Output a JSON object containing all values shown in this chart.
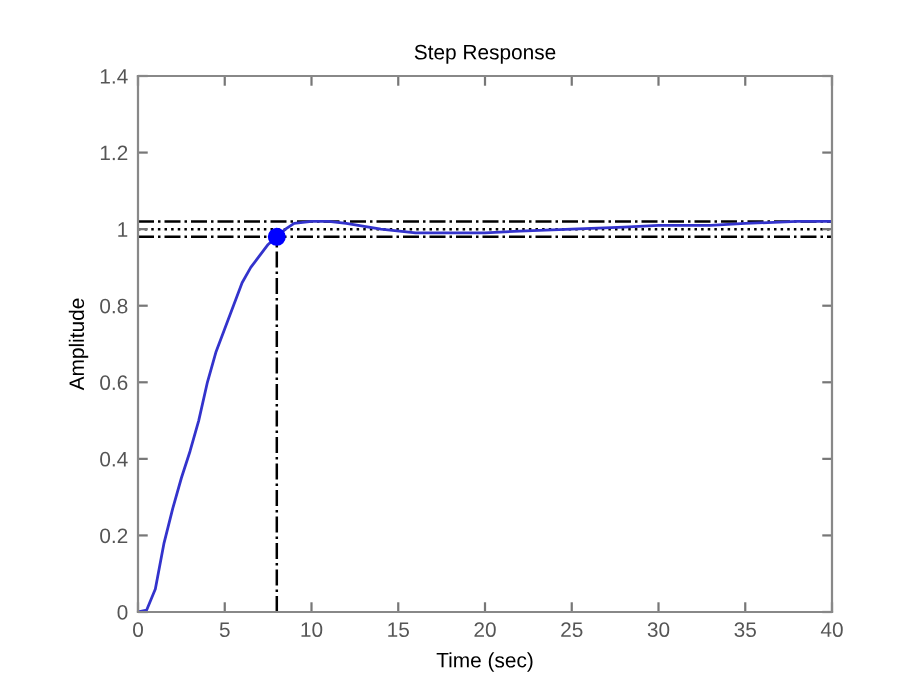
{
  "chart_data": {
    "type": "line",
    "title": "Step Response",
    "xlabel": "Time (sec)",
    "ylabel": "Amplitude",
    "series": [
      {
        "color": "#3333cc",
        "x": [
          0,
          0.5,
          1,
          1.5,
          2,
          2.5,
          3,
          3.5,
          4,
          4.5,
          5,
          5.5,
          6,
          6.5,
          7,
          7.5,
          8,
          8.5,
          9,
          10,
          11,
          12,
          14,
          16,
          18,
          20,
          22,
          25,
          28,
          30,
          33,
          35,
          38,
          40
        ],
        "values": [
          0,
          0.005,
          0.06,
          0.18,
          0.27,
          0.35,
          0.42,
          0.5,
          0.6,
          0.68,
          0.74,
          0.8,
          0.86,
          0.9,
          0.93,
          0.96,
          0.98,
          1.0,
          1.015,
          1.02,
          1.02,
          1.015,
          1.0,
          0.99,
          0.99,
          0.99,
          0.995,
          1.0,
          1.005,
          1.01,
          1.01,
          1.015,
          1.02,
          1.02
        ]
      },
      {
        "type": "scatter",
        "color": "#0000ff",
        "x": [
          8
        ],
        "values": [
          0.98
        ],
        "marker": "circle"
      }
    ],
    "ref_lines": [
      {
        "axis": "y",
        "value": 1.02,
        "color": "#000000",
        "line_style": "dashdot"
      },
      {
        "axis": "y",
        "value": 1.0,
        "color": "#000000",
        "line_style": "dotted"
      },
      {
        "axis": "y",
        "value": 0.98,
        "color": "#000000",
        "line_style": "dashdot"
      },
      {
        "axis": "x",
        "value": 8,
        "color": "#000000",
        "line_style": "dashdot"
      }
    ],
    "xlim": [
      0,
      40
    ],
    "xticks": [
      0,
      5,
      10,
      15,
      20,
      25,
      30,
      35,
      40
    ],
    "ylim": [
      0,
      1.4
    ],
    "yticks": [
      0,
      0.2,
      0.4,
      0.6,
      0.8,
      1,
      1.2,
      1.4
    ],
    "grid": false,
    "legend": false
  }
}
